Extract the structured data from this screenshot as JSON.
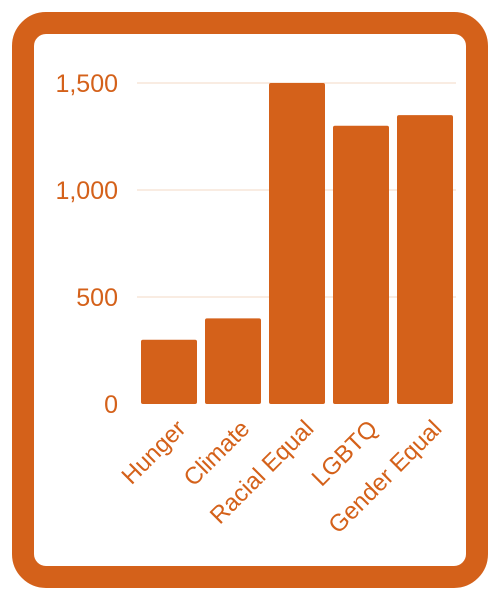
{
  "colors": {
    "accent": "#d4611a",
    "grid": "#f3d8c6",
    "background": "#ffffff"
  },
  "chart_data": {
    "type": "bar",
    "categories": [
      "Hunger",
      "Climate",
      "Racial Equal",
      "LGBTQ",
      "Gender Equal"
    ],
    "values": [
      300,
      400,
      1500,
      1300,
      1350
    ],
    "y_ticks": [
      "0",
      "500",
      "1,000",
      "1,500"
    ],
    "y_tick_values": [
      0,
      500,
      1000,
      1500
    ],
    "ylim": [
      0,
      1500
    ],
    "grid": true,
    "legend": "none",
    "title": "",
    "xlabel": "",
    "ylabel": ""
  }
}
